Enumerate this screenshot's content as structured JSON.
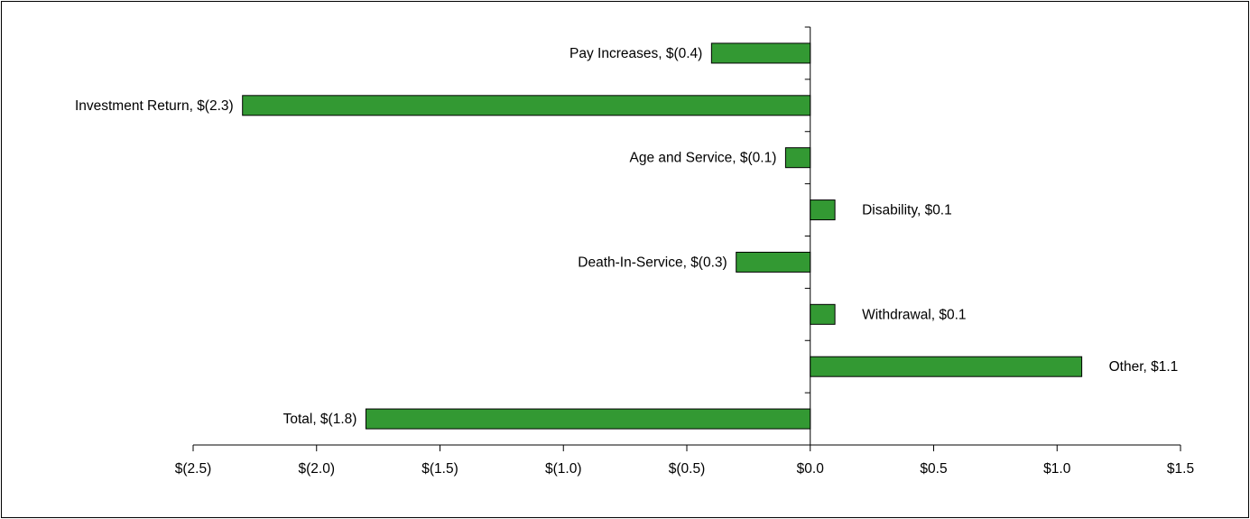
{
  "chart_data": {
    "type": "bar",
    "orientation": "horizontal",
    "categories": [
      "Pay Increases",
      "Investment Return",
      "Age and Service",
      "Disability",
      "Death-In-Service",
      "Withdrawal",
      "Other",
      "Total"
    ],
    "values": [
      -0.4,
      -2.3,
      -0.1,
      0.1,
      -0.3,
      0.1,
      1.1,
      -1.8
    ],
    "data_labels": [
      "Pay Increases, $(0.4)",
      "Investment Return, $(2.3)",
      "Age and Service, $(0.1)",
      "Disability, $0.1",
      "Death-In-Service, $(0.3)",
      "Withdrawal, $0.1",
      "Other, $1.1",
      "Total, $(1.8)"
    ],
    "x_ticks": [
      -2.5,
      -2.0,
      -1.5,
      -1.0,
      -0.5,
      0.0,
      0.5,
      1.0,
      1.5
    ],
    "x_tick_labels": [
      "$(2.5)",
      "$(2.0)",
      "$(1.5)",
      "$(1.0)",
      "$(0.5)",
      "$0.0",
      "$0.5",
      "$1.0",
      "$1.5"
    ],
    "xlim": [
      -2.5,
      1.5
    ],
    "title": "",
    "xlabel": "",
    "ylabel": "",
    "grid": false,
    "legend": "none",
    "bar_color": "#339933",
    "bar_edge_color": "#000000"
  }
}
